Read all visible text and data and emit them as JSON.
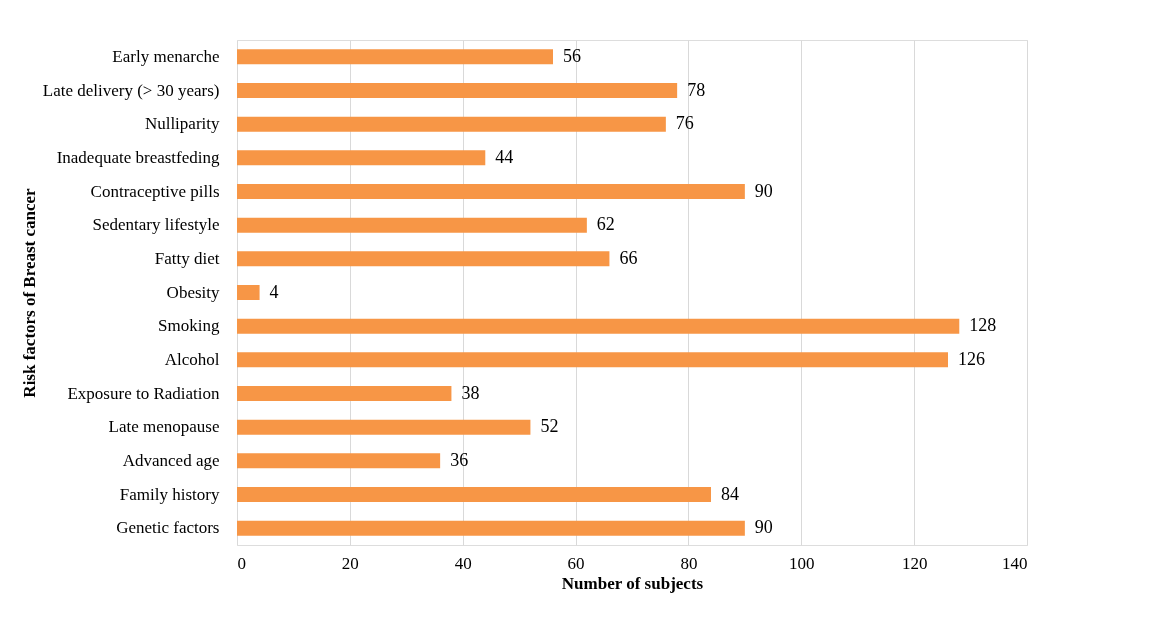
{
  "chart_data": {
    "type": "bar",
    "orientation": "horizontal",
    "xlabel": "Number of subjects",
    "ylabel": "Risk factors of Breast cancer",
    "categories": [
      "Early menarche",
      "Late delivery (> 30 years)",
      "Nulliparity",
      "Inadequate breastfeding",
      "Contraceptive pills",
      "Sedentary lifestyle",
      "Fatty diet",
      "Obesity",
      "Smoking",
      "Alcohol",
      "Exposure to Radiation",
      "Late menopause",
      "Advanced age",
      "Family history",
      "Genetic factors"
    ],
    "values": [
      56,
      78,
      76,
      44,
      90,
      62,
      66,
      4,
      128,
      126,
      38,
      52,
      36,
      84,
      90
    ],
    "color": "#f79646",
    "xlim": [
      0,
      140
    ],
    "xticks": [
      0,
      20,
      40,
      60,
      80,
      100,
      120,
      140
    ],
    "grid": "x",
    "data_labels": true
  }
}
